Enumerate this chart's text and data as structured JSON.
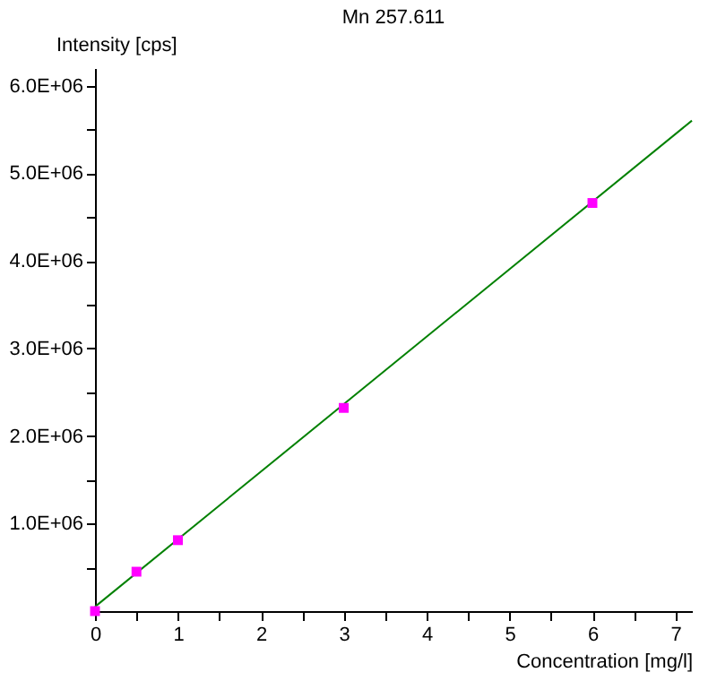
{
  "chart_data": {
    "type": "scatter",
    "title": "Mn 257.611",
    "xlabel": "Concentration [mg/l]",
    "ylabel": "Intensity [cps]",
    "xlim": [
      0,
      7.2
    ],
    "ylim": [
      0,
      6200000
    ],
    "xticks": [
      0,
      {
        "value": 0.5,
        "label": null
      },
      1,
      {
        "value": 1.5,
        "label": null
      },
      2,
      {
        "value": 2.5,
        "label": null
      },
      3,
      {
        "value": 3.5,
        "label": null
      },
      4,
      {
        "value": 4.5,
        "label": null
      },
      5,
      {
        "value": 5.5,
        "label": null
      },
      6,
      {
        "value": 6.5,
        "label": null
      },
      7
    ],
    "yticks": [
      {
        "value": 500000,
        "label": null
      },
      {
        "value": 1000000,
        "label": "1.0E+06"
      },
      {
        "value": 1500000,
        "label": null
      },
      {
        "value": 2000000,
        "label": "2.0E+06"
      },
      {
        "value": 2500000,
        "label": null
      },
      {
        "value": 3000000,
        "label": "3.0E+06"
      },
      {
        "value": 3500000,
        "label": null
      },
      {
        "value": 4000000,
        "label": "4.0E+06"
      },
      {
        "value": 4500000,
        "label": null
      },
      {
        "value": 5000000,
        "label": "5.0E+06"
      },
      {
        "value": 5500000,
        "label": null
      },
      {
        "value": 6000000,
        "label": "6.0E+06"
      }
    ],
    "grid": false,
    "series": [
      {
        "type": "line",
        "color": "#008000",
        "marker": "none",
        "x": [
          0,
          7.2
        ],
        "values": [
          50000,
          5600000
        ]
      },
      {
        "color": "#ff00ff",
        "marker": "square",
        "x": [
          0,
          0.5,
          1,
          3,
          6
        ],
        "values": [
          0,
          450000,
          810000,
          2320000,
          4660000
        ]
      }
    ]
  }
}
